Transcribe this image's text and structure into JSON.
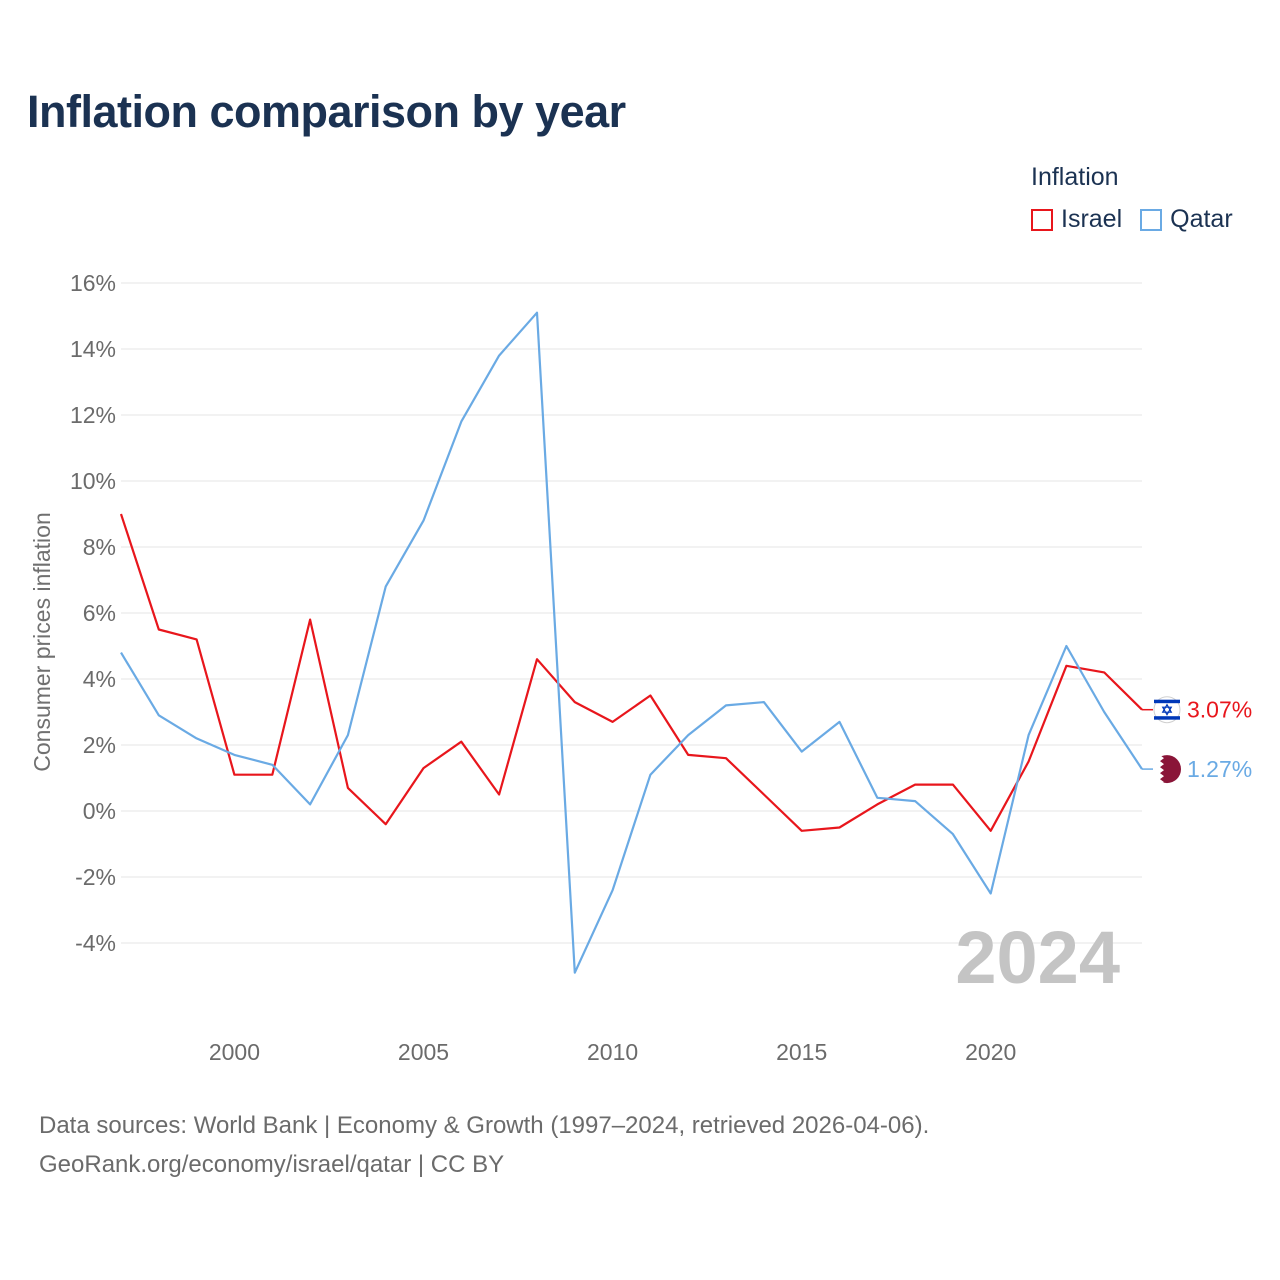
{
  "title": "Inflation comparison by year",
  "legend": {
    "title": "Inflation",
    "items": [
      {
        "name": "Israel",
        "color": "#e8161c"
      },
      {
        "name": "Qatar",
        "color": "#6aaae4"
      }
    ]
  },
  "footer": {
    "line1": "Data sources: World Bank | Economy & Growth (1997–2024, retrieved 2026-04-06).",
    "line2": "GeoRank.org/economy/israel/qatar | CC BY"
  },
  "chart_data": {
    "type": "line",
    "title": "Inflation comparison by year",
    "xlabel": "",
    "ylabel": "Consumer prices inflation",
    "watermark": "2024",
    "x": [
      1997,
      1998,
      1999,
      2000,
      2001,
      2002,
      2003,
      2004,
      2005,
      2006,
      2007,
      2008,
      2009,
      2010,
      2011,
      2012,
      2013,
      2014,
      2015,
      2016,
      2017,
      2018,
      2019,
      2020,
      2021,
      2022,
      2023,
      2024
    ],
    "xlim": [
      1997,
      2024
    ],
    "ylim": [
      -6,
      16
    ],
    "x_ticks": [
      2000,
      2005,
      2010,
      2015,
      2020
    ],
    "x_tick_labels": [
      "2000",
      "2005",
      "2010",
      "2015",
      "2020"
    ],
    "y_ticks": [
      16,
      14,
      12,
      10,
      8,
      6,
      4,
      2,
      0,
      -2,
      -4
    ],
    "y_tick_labels": [
      "16%",
      "14%",
      "12%",
      "10%",
      "8%",
      "6%",
      "4%",
      "2%",
      "0%",
      "-2%",
      "-4%"
    ],
    "grid": true,
    "legend_position": "top-right",
    "series": [
      {
        "name": "Israel",
        "color": "#e8161c",
        "end_label": "3.07%",
        "flag_icon": "israel-flag-icon",
        "values": [
          9.0,
          5.5,
          5.2,
          1.1,
          1.1,
          5.8,
          0.7,
          -0.4,
          1.3,
          2.1,
          0.5,
          4.6,
          3.3,
          2.7,
          3.5,
          1.7,
          1.6,
          0.5,
          -0.6,
          -0.5,
          0.2,
          0.8,
          0.8,
          -0.6,
          1.5,
          4.4,
          4.2,
          3.07
        ]
      },
      {
        "name": "Qatar",
        "color": "#6aaae4",
        "end_label": "1.27%",
        "flag_icon": "qatar-flag-icon",
        "values": [
          4.8,
          2.9,
          2.2,
          1.7,
          1.4,
          0.2,
          2.3,
          6.8,
          8.8,
          11.8,
          13.8,
          15.1,
          -4.9,
          -2.4,
          1.1,
          2.3,
          3.2,
          3.3,
          1.8,
          2.7,
          0.4,
          0.3,
          -0.7,
          -2.5,
          2.3,
          5.0,
          3.0,
          1.27
        ]
      }
    ]
  }
}
